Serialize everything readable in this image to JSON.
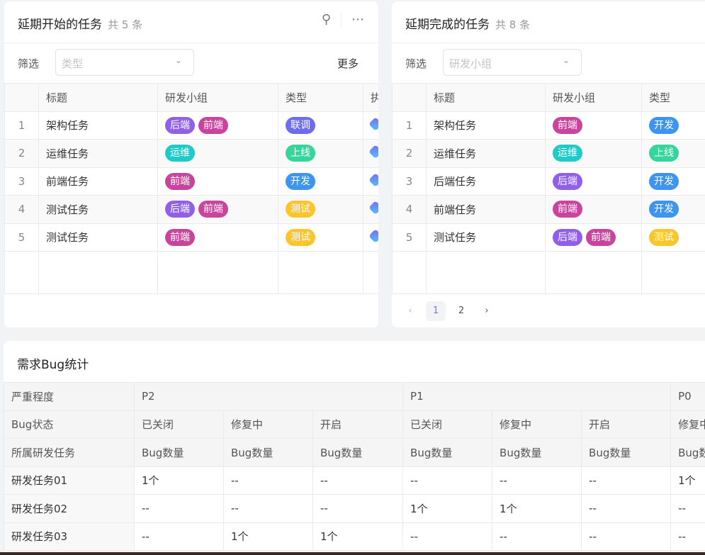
{
  "delayed_start": {
    "title": "延期开始的任务",
    "count": "共 5 条",
    "filter_label": "筛选",
    "filter_placeholder": "类型",
    "more": "更多",
    "columns": [
      "",
      "标题",
      "研发小组",
      "类型",
      "执行人"
    ],
    "rows": [
      {
        "idx": "1",
        "title": "架构任务",
        "groups": [
          "后端",
          "前端"
        ],
        "type": "联调"
      },
      {
        "idx": "2",
        "title": "运维任务",
        "groups": [
          "运维"
        ],
        "type": "上线"
      },
      {
        "idx": "3",
        "title": "前端任务",
        "groups": [
          "前端"
        ],
        "type": "开发"
      },
      {
        "idx": "4",
        "title": "测试任务",
        "groups": [
          "后端",
          "前端"
        ],
        "type": "测试"
      },
      {
        "idx": "5",
        "title": "测试任务",
        "groups": [
          "前端"
        ],
        "type": "测试"
      }
    ]
  },
  "delayed_finish": {
    "title": "延期完成的任务",
    "count": "共 8 条",
    "filter_label": "筛选",
    "filter_placeholder": "研发小组",
    "columns": [
      "",
      "标题",
      "研发小组",
      "类型"
    ],
    "rows": [
      {
        "idx": "1",
        "title": "架构任务",
        "groups": [
          "前端"
        ],
        "type": "开发"
      },
      {
        "idx": "2",
        "title": "运维任务",
        "groups": [
          "运维"
        ],
        "type": "上线"
      },
      {
        "idx": "3",
        "title": "后端任务",
        "groups": [
          "后端"
        ],
        "type": "开发"
      },
      {
        "idx": "4",
        "title": "前端任务",
        "groups": [
          "前端"
        ],
        "type": "开发"
      },
      {
        "idx": "5",
        "title": "测试任务",
        "groups": [
          "后端",
          "前端"
        ],
        "type": "测试"
      }
    ],
    "pagination": {
      "current": "1",
      "pages": [
        "1",
        "2"
      ]
    }
  },
  "tag_colors": {
    "后端": "#9160ea",
    "前端": "#c9449c",
    "运维": "#1ecbc8",
    "联调": "#6b6cf0",
    "上线": "#35d59c",
    "开发": "#3d95f0",
    "测试": "#fcc52b"
  },
  "bug_stats": {
    "title": "需求Bug统计",
    "severity_label": "严重程度",
    "severities": [
      {
        "name": "P2",
        "span": 3
      },
      {
        "name": "P1",
        "span": 3
      },
      {
        "name": "P0",
        "span": 1
      }
    ],
    "status_label": "Bug状态",
    "statuses": [
      "已关闭",
      "修复中",
      "开启",
      "已关闭",
      "修复中",
      "开启",
      "修复中"
    ],
    "task_label": "所属研发任务",
    "metric": "Bug数量",
    "rows": [
      {
        "task": "研发任务01",
        "values": [
          "1个",
          "--",
          "--",
          "--",
          "--",
          "--",
          "1个"
        ]
      },
      {
        "task": "研发任务02",
        "values": [
          "--",
          "--",
          "--",
          "1个",
          "1个",
          "--",
          "--"
        ]
      },
      {
        "task": "研发任务03",
        "values": [
          "--",
          "1个",
          "1个",
          "--",
          "--",
          "--",
          "--"
        ]
      }
    ]
  }
}
